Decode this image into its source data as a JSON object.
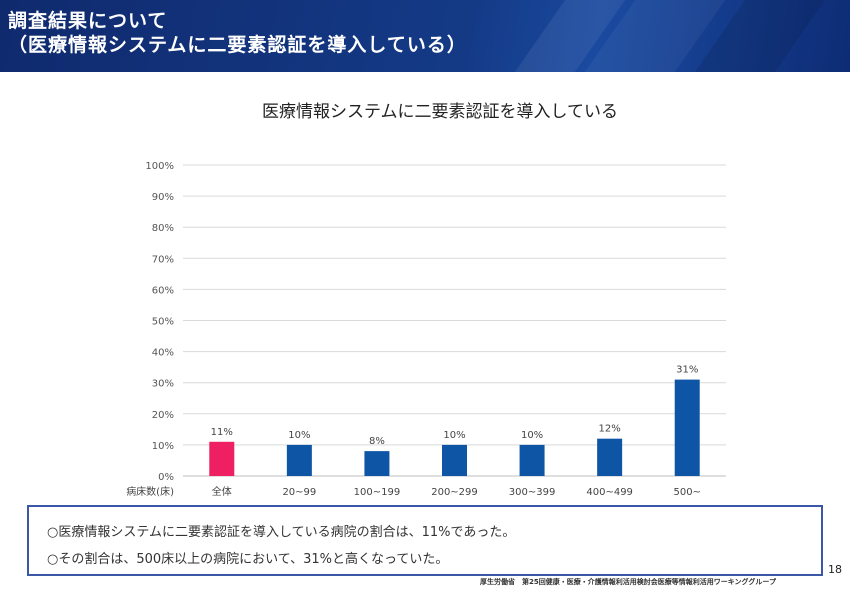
{
  "header": {
    "title_line1": "調査結果について",
    "title_line2": "（医療情報システムに二要素認証を導入している）"
  },
  "chart_data": {
    "type": "bar",
    "title": "医療情報システムに二要素認証を導入している",
    "xlabel": "病床数(床)",
    "ylabel": "",
    "categories": [
      "全体",
      "20~99",
      "100~199",
      "200~299",
      "300~399",
      "400~499",
      "500~"
    ],
    "values": [
      11,
      10,
      8,
      10,
      10,
      12,
      31
    ],
    "value_labels": [
      "11%",
      "10%",
      "8%",
      "10%",
      "10%",
      "12%",
      "31%"
    ],
    "y_ticks": [
      "0%",
      "10%",
      "20%",
      "30%",
      "40%",
      "50%",
      "60%",
      "70%",
      "80%",
      "90%",
      "100%"
    ],
    "ylim": [
      0,
      100
    ],
    "grid": true,
    "colors": [
      "#ee1f63",
      "#0f55a6",
      "#0f55a6",
      "#0f55a6",
      "#0f55a6",
      "#0f55a6",
      "#0f55a6"
    ]
  },
  "summary": {
    "line1": "○医療情報システムに二要素認証を導入している病院の割合は、11%であった。",
    "line2": "○その割合は、500床以上の病院において、31%と高くなっていた。"
  },
  "page_number": "18",
  "source": "厚生労働省　第25回健康・医療・介護情報利活用検討会医療等情報利活用ワーキンググループ"
}
